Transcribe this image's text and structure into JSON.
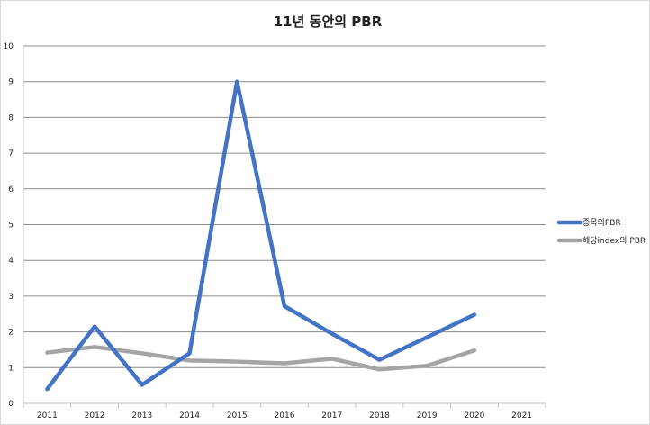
{
  "chart_data": {
    "type": "line",
    "title": "11년 동안의 PBR",
    "categories": [
      "2011",
      "2012",
      "2013",
      "2014",
      "2015",
      "2016",
      "2017",
      "2018",
      "2019",
      "2020",
      "2021"
    ],
    "ylim": [
      0,
      10
    ],
    "yticks": [
      0,
      1,
      2,
      3,
      4,
      5,
      6,
      7,
      8,
      9,
      10
    ],
    "grid": true,
    "legend_position": "right",
    "series": [
      {
        "name": "종목의PBR",
        "color": "#4472C4",
        "values": [
          0.4,
          2.15,
          0.52,
          1.4,
          9.0,
          2.72,
          1.95,
          1.22,
          1.85,
          2.48,
          null
        ]
      },
      {
        "name": "해당index의 PBR",
        "color": "#A5A5A5",
        "values": [
          1.42,
          1.58,
          1.4,
          1.2,
          1.17,
          1.12,
          1.25,
          0.95,
          1.05,
          1.48,
          null
        ]
      }
    ]
  }
}
